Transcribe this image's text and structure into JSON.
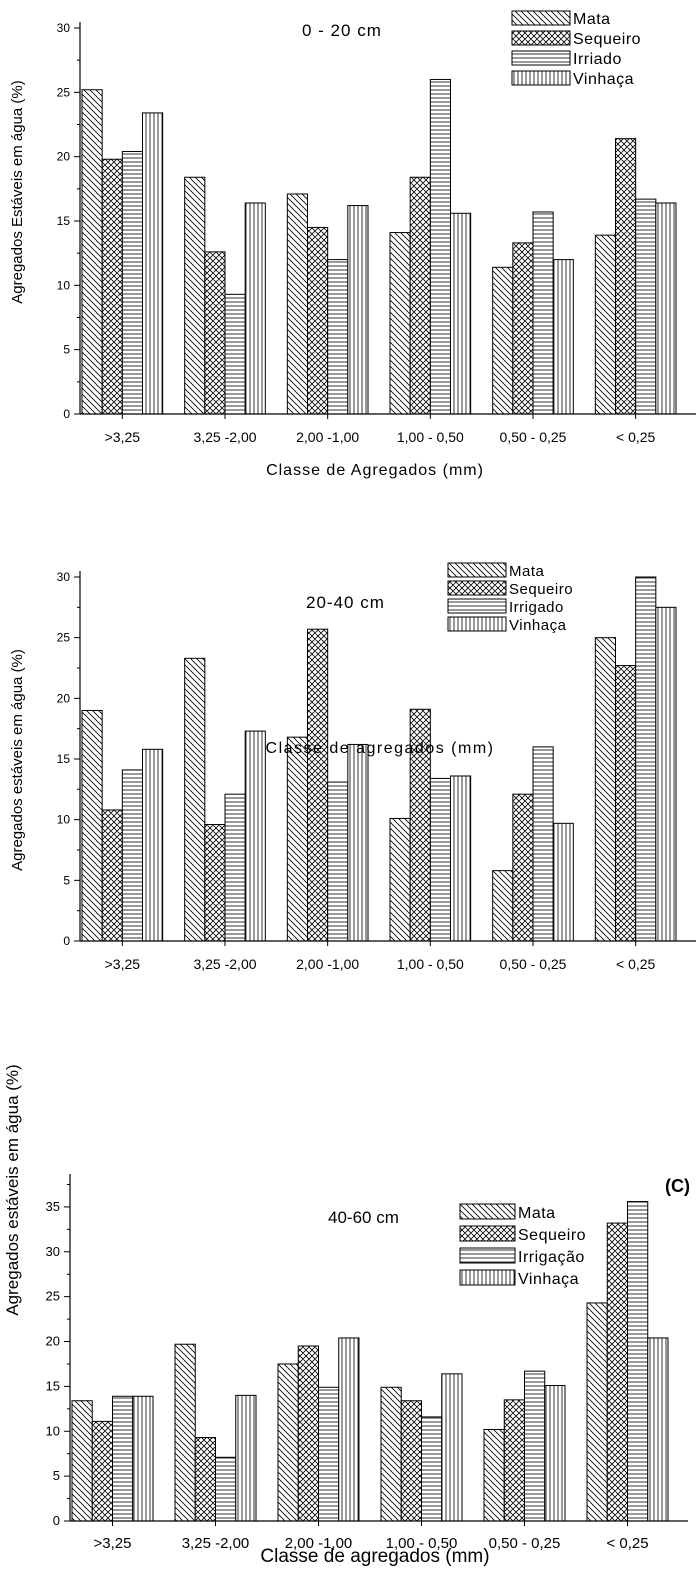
{
  "chart_data": [
    {
      "type": "bar",
      "depth_label": "0 - 20 cm",
      "panel_tag": "",
      "xlabel": "Classe de Agregados (mm)",
      "ylabel": "Agregados Estáveis em água (%)",
      "ylim": [
        0,
        30
      ],
      "yticks": [
        0,
        5,
        10,
        15,
        20,
        25,
        30
      ],
      "categories": [
        ">3,25",
        "3,25 -2,00",
        "2,00 -1,00",
        "1,00 - 0,50",
        "0,50 - 0,25",
        "< 0,25"
      ],
      "legend_position": "top-right",
      "series": [
        {
          "name": "Mata",
          "pattern": "diag-down",
          "values": [
            25.2,
            18.4,
            17.1,
            14.1,
            11.4,
            13.9
          ]
        },
        {
          "name": "Sequeiro",
          "pattern": "cross",
          "values": [
            19.8,
            12.6,
            14.5,
            18.4,
            13.3,
            21.4
          ]
        },
        {
          "name": "Irriado",
          "pattern": "horizontal",
          "values": [
            20.4,
            9.3,
            12.0,
            26.0,
            15.7,
            16.7
          ]
        },
        {
          "name": "Vinhaça",
          "pattern": "vertical",
          "values": [
            23.4,
            16.4,
            16.2,
            15.6,
            12.0,
            16.4
          ]
        }
      ]
    },
    {
      "type": "bar",
      "depth_label": "20-40 cm",
      "panel_tag": "",
      "xlabel": "Classe de agregados (mm)",
      "ylabel": "Agregados estáveis em água (%)",
      "ylim": [
        0,
        30
      ],
      "yticks": [
        0,
        5,
        10,
        15,
        20,
        25,
        30
      ],
      "categories": [
        ">3,25",
        "3,25 -2,00",
        "2,00 -1,00",
        "1,00 - 0,50",
        "0,50 - 0,25",
        "< 0,25"
      ],
      "legend_position": "top-right",
      "series": [
        {
          "name": "Mata",
          "pattern": "diag-down",
          "values": [
            19.0,
            23.3,
            16.8,
            10.1,
            5.8,
            25.0
          ]
        },
        {
          "name": "Sequeiro",
          "pattern": "cross",
          "values": [
            10.8,
            9.6,
            25.7,
            19.1,
            12.1,
            22.7
          ]
        },
        {
          "name": "Irrigado",
          "pattern": "horizontal",
          "values": [
            14.1,
            12.1,
            13.1,
            13.4,
            16.0,
            30.0
          ]
        },
        {
          "name": "Vinhaça",
          "pattern": "vertical",
          "values": [
            15.8,
            17.3,
            16.2,
            13.6,
            9.7,
            27.5
          ]
        }
      ]
    },
    {
      "type": "bar",
      "depth_label": "40-60 cm",
      "panel_tag": "(C)",
      "xlabel": "Classe de agregados (mm)",
      "ylabel": "Agregados estáveis em água (%)",
      "ylim": [
        0,
        38
      ],
      "yticks": [
        0,
        5,
        10,
        15,
        20,
        25,
        30,
        35
      ],
      "categories": [
        ">3,25",
        "3,25 -2,00",
        "2,00 -1,00",
        "1,00 - 0,50",
        "0,50 - 0,25",
        "< 0,25"
      ],
      "legend_position": "top-right",
      "series": [
        {
          "name": "Mata",
          "pattern": "diag-down",
          "values": [
            13.4,
            19.7,
            17.5,
            14.9,
            10.2,
            24.3
          ]
        },
        {
          "name": "Sequeiro",
          "pattern": "cross",
          "values": [
            11.1,
            9.3,
            19.5,
            13.4,
            13.5,
            33.2
          ]
        },
        {
          "name": "Irrigação",
          "pattern": "horizontal",
          "values": [
            13.9,
            7.1,
            14.9,
            11.6,
            16.7,
            35.6
          ]
        },
        {
          "name": "Vinhaça",
          "pattern": "vertical",
          "values": [
            13.9,
            14.0,
            20.4,
            16.4,
            15.1,
            20.4
          ]
        }
      ]
    }
  ]
}
